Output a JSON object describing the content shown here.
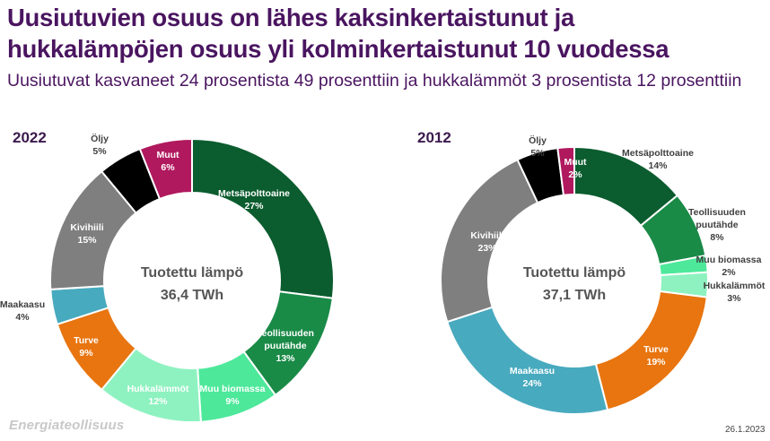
{
  "title_line1": "Uusiutuvien osuus on lähes kaksinkertaistunut ja",
  "title_line2": "hukkalämpöjen osuus yli kolminkertaistunut 10 vuodessa",
  "subtitle": "Uusiutuvat kasvaneet 24 prosentista 49 prosenttiin ja hukkalämmöt 3 prosentista 12 prosenttiin",
  "footer": {
    "brand": "Energiateollisuus",
    "date": "26.1.2023"
  },
  "chart_data": [
    {
      "type": "pie",
      "year": "2022",
      "center_label": "Tuotettu lämpö",
      "center_value": "36,4 TWh",
      "slices": [
        {
          "name": "Metsäpolttoaine",
          "value": 27,
          "label": "27%",
          "color": "#0b5c2e"
        },
        {
          "name": "Teollisuuden puutähde",
          "value": 13,
          "label": "13%",
          "color": "#1a8a47"
        },
        {
          "name": "Muu biomassa",
          "value": 9,
          "label": "9%",
          "color": "#4de89a"
        },
        {
          "name": "Hukkalämmöt",
          "value": 12,
          "label": "12%",
          "color": "#8ef2c0"
        },
        {
          "name": "Turve",
          "value": 9,
          "label": "9%",
          "color": "#e8750f"
        },
        {
          "name": "Maakaasu",
          "value": 4,
          "label": "4%",
          "color": "#48aabf"
        },
        {
          "name": "Kivihiili",
          "value": 15,
          "label": "15%",
          "color": "#7f7f7f"
        },
        {
          "name": "Öljy",
          "value": 5,
          "label": "5%",
          "color": "#000000"
        },
        {
          "name": "Muut",
          "value": 6,
          "label": "6%",
          "color": "#b0195e"
        }
      ]
    },
    {
      "type": "pie",
      "year": "2012",
      "center_label": "Tuotettu lämpö",
      "center_value": "37,1 TWh",
      "slices": [
        {
          "name": "Metsäpolttoaine",
          "value": 14,
          "label": "14%",
          "color": "#0b5c2e"
        },
        {
          "name": "Teollisuuden puutähde",
          "value": 8,
          "label": "8%",
          "color": "#1a8a47"
        },
        {
          "name": "Muu biomassa",
          "value": 2,
          "label": "2%",
          "color": "#4de89a"
        },
        {
          "name": "Hukkalämmöt",
          "value": 3,
          "label": "3%",
          "color": "#8ef2c0"
        },
        {
          "name": "Turve",
          "value": 19,
          "label": "19%",
          "color": "#e8750f"
        },
        {
          "name": "Maakaasu",
          "value": 24,
          "label": "24%",
          "color": "#48aabf"
        },
        {
          "name": "Kivihiili",
          "value": 23,
          "label": "23%",
          "color": "#7f7f7f"
        },
        {
          "name": "Öljy",
          "value": 5,
          "label": "5%",
          "color": "#000000"
        },
        {
          "name": "Muut",
          "value": 2,
          "label": "2%",
          "color": "#b0195e"
        }
      ]
    }
  ]
}
